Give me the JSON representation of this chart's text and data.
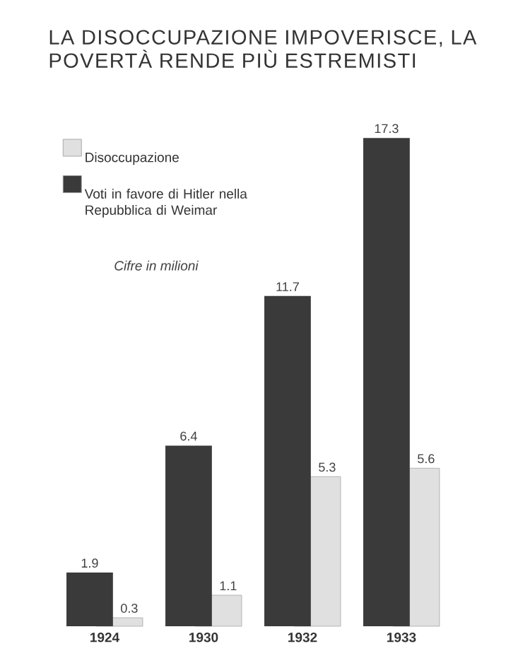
{
  "chart_data": {
    "type": "bar",
    "title": "LA DISOCCUPAZIONE IMPOVERISCE, LA POVERTÀ RENDE PIÙ ESTREMISTI",
    "categories": [
      "1924",
      "1930",
      "1932",
      "1933"
    ],
    "series": [
      {
        "name": "Disoccupazione",
        "color": "#e0e0e0",
        "values": [
          0.3,
          1.1,
          5.3,
          5.6
        ]
      },
      {
        "name": "Voti in favore di Hitler nella Repubblica di Weimar",
        "color": "#3a3a3a",
        "values": [
          1.9,
          6.4,
          11.7,
          17.3
        ]
      }
    ],
    "data_labels": true,
    "legend": "top left",
    "annotations": [
      "Cifre in milioni"
    ]
  }
}
